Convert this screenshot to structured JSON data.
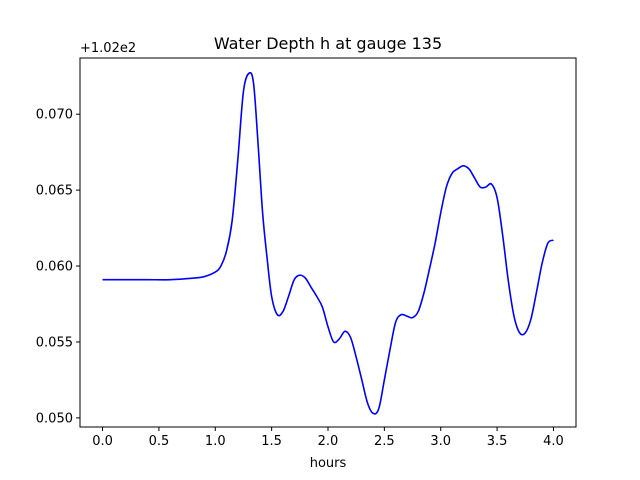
{
  "chart_data": {
    "type": "line",
    "title": "Water Depth h at gauge 135",
    "xlabel": "hours",
    "ylabel": "",
    "offset_label": "+1.02e2",
    "xlim": [
      -0.2,
      4.2
    ],
    "ylim": [
      0.0494,
      0.0737
    ],
    "xticks": [
      0.0,
      0.5,
      1.0,
      1.5,
      2.0,
      2.5,
      3.0,
      3.5,
      4.0
    ],
    "xtick_labels": [
      "0.0",
      "0.5",
      "1.0",
      "1.5",
      "2.0",
      "2.5",
      "3.0",
      "3.5",
      "4.0"
    ],
    "yticks": [
      0.05,
      0.055,
      0.06,
      0.065,
      0.07
    ],
    "ytick_labels": [
      "0.050",
      "0.055",
      "0.060",
      "0.065",
      "0.070"
    ],
    "grid": false,
    "legend": "none",
    "series": [
      {
        "color": "#0000ff",
        "x": [
          0.0,
          0.2,
          0.4,
          0.6,
          0.8,
          0.9,
          1.0,
          1.05,
          1.1,
          1.15,
          1.2,
          1.25,
          1.3,
          1.34,
          1.38,
          1.42,
          1.46,
          1.5,
          1.55,
          1.6,
          1.65,
          1.7,
          1.75,
          1.8,
          1.85,
          1.9,
          1.95,
          2.0,
          2.05,
          2.1,
          2.15,
          2.2,
          2.25,
          2.3,
          2.35,
          2.4,
          2.45,
          2.5,
          2.55,
          2.6,
          2.65,
          2.7,
          2.75,
          2.8,
          2.85,
          2.9,
          2.95,
          3.0,
          3.05,
          3.1,
          3.15,
          3.2,
          3.25,
          3.3,
          3.35,
          3.4,
          3.45,
          3.5,
          3.55,
          3.6,
          3.65,
          3.7,
          3.75,
          3.8,
          3.85,
          3.9,
          3.95,
          4.0
        ],
        "y": [
          0.0591,
          0.0591,
          0.0591,
          0.0591,
          0.0592,
          0.0593,
          0.0596,
          0.06,
          0.061,
          0.063,
          0.067,
          0.0715,
          0.0727,
          0.072,
          0.068,
          0.0635,
          0.0605,
          0.058,
          0.0568,
          0.057,
          0.058,
          0.0591,
          0.0594,
          0.0592,
          0.0586,
          0.058,
          0.0573,
          0.056,
          0.055,
          0.0552,
          0.0557,
          0.0553,
          0.054,
          0.0525,
          0.051,
          0.0503,
          0.0506,
          0.0525,
          0.0545,
          0.0563,
          0.0568,
          0.0567,
          0.0566,
          0.057,
          0.0582,
          0.0598,
          0.0615,
          0.0635,
          0.0652,
          0.0661,
          0.0664,
          0.0666,
          0.0664,
          0.0658,
          0.0652,
          0.0652,
          0.0654,
          0.0645,
          0.062,
          0.059,
          0.0567,
          0.0556,
          0.0556,
          0.0565,
          0.0583,
          0.0602,
          0.0615,
          0.0617
        ]
      }
    ]
  }
}
